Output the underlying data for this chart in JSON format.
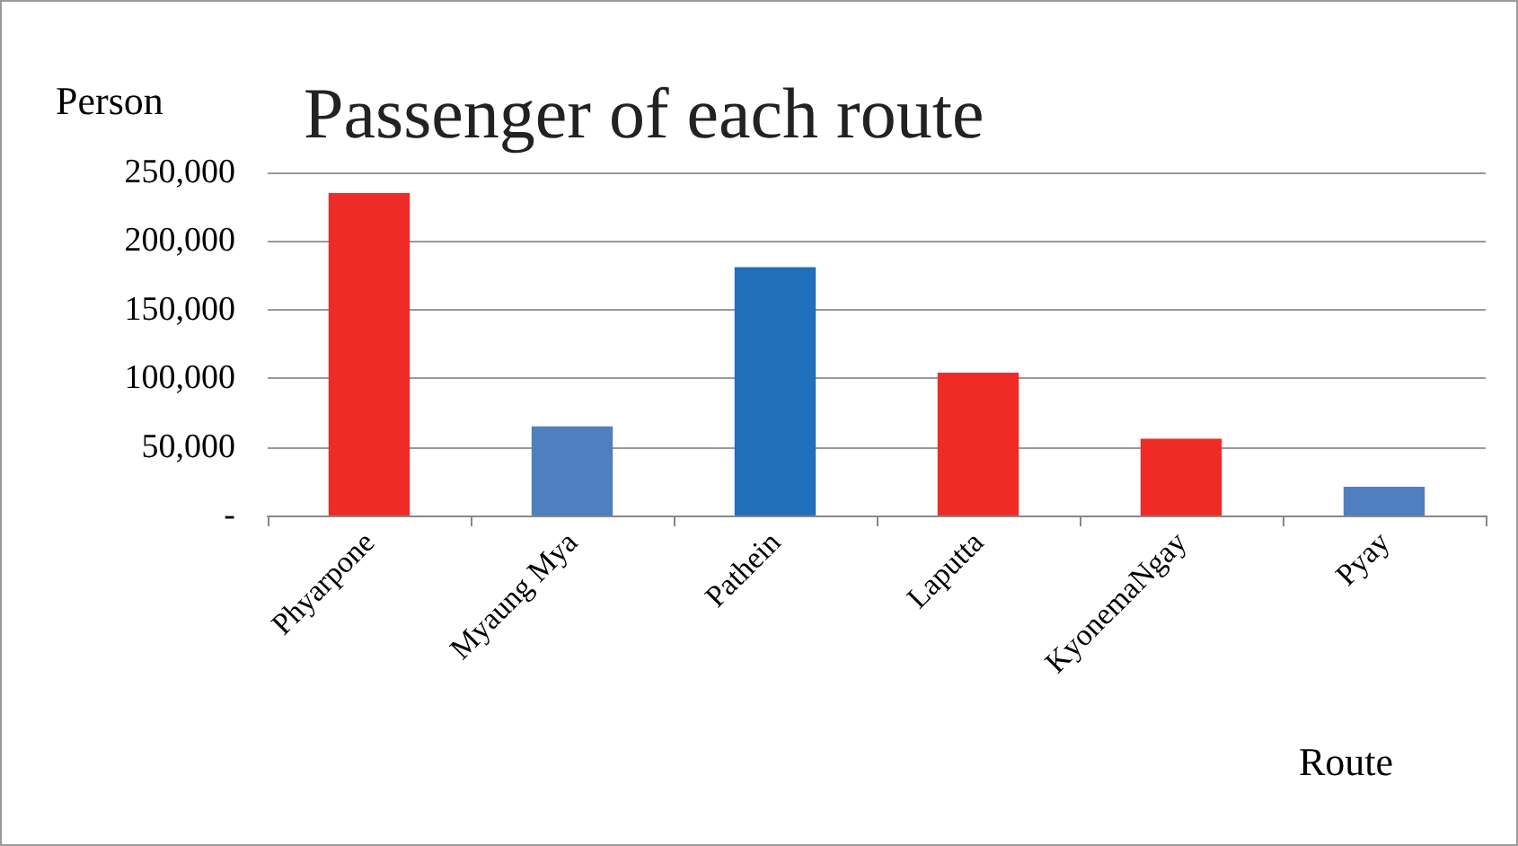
{
  "chart_data": {
    "type": "bar",
    "title": "Passenger of each route",
    "xlabel": "Route",
    "ylabel": "Person",
    "categories": [
      "Phyarpone",
      "Myaung Mya",
      "Pathein",
      "Laputta",
      "KyonemaNgay",
      "Pyay"
    ],
    "values": [
      235000,
      65000,
      181000,
      104000,
      56000,
      21000
    ],
    "colors": [
      "#ee2b27",
      "#4f7fbf",
      "#1f6fbb",
      "#ee2b27",
      "#ee2b27",
      "#4f7fbf"
    ],
    "ylim": [
      0,
      250000
    ],
    "yticks": [
      {
        "value": 0,
        "label": "-"
      },
      {
        "value": 50000,
        "label": "50,000"
      },
      {
        "value": 100000,
        "label": "100,000"
      },
      {
        "value": 150000,
        "label": "150,000"
      },
      {
        "value": 200000,
        "label": "200,000"
      },
      {
        "value": 250000,
        "label": "250,000"
      }
    ],
    "grid": "y"
  }
}
